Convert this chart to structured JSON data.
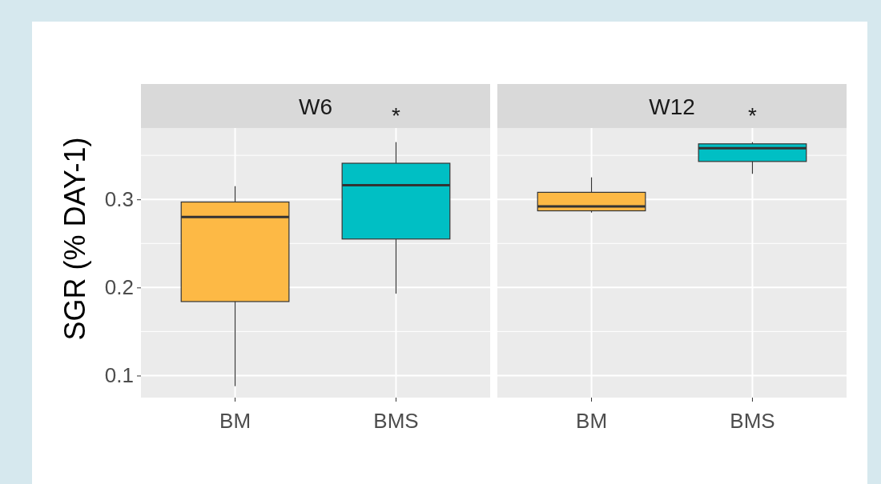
{
  "chart_data": [
    {
      "type": "box",
      "title": "W6",
      "ylabel": "SGR (% DAY-1)",
      "categories": [
        "BM",
        "BMS"
      ],
      "colors": [
        "#fdb945",
        "#00bfc4"
      ],
      "boxes": [
        {
          "low": 0.088,
          "q1": 0.184,
          "median": 0.28,
          "q3": 0.297,
          "high": 0.315
        },
        {
          "low": 0.193,
          "q1": 0.255,
          "median": 0.316,
          "q3": 0.341,
          "high": 0.365
        }
      ],
      "ylim": [
        0.075,
        0.381
      ],
      "yticks": [
        {
          "value": 0.1,
          "label": "0.1"
        },
        {
          "value": 0.15,
          "label": null
        },
        {
          "value": 0.2,
          "label": "0.2"
        },
        {
          "value": 0.25,
          "label": null
        },
        {
          "value": 0.3,
          "label": "0.3"
        },
        {
          "value": 0.35,
          "label": null
        }
      ],
      "grid": true,
      "annotations": [
        "*"
      ]
    },
    {
      "type": "box",
      "title": "W12",
      "categories": [
        "BM",
        "BMS"
      ],
      "colors": [
        "#fdb945",
        "#00bfc4"
      ],
      "boxes": [
        {
          "low": 0.285,
          "q1": 0.287,
          "median": 0.292,
          "q3": 0.308,
          "high": 0.325
        },
        {
          "low": 0.329,
          "q1": 0.343,
          "median": 0.358,
          "q3": 0.363,
          "high": 0.365
        }
      ],
      "ylim": [
        0.075,
        0.381
      ],
      "grid": true,
      "tick_labels": "x",
      "annotations": [
        "*"
      ]
    }
  ]
}
